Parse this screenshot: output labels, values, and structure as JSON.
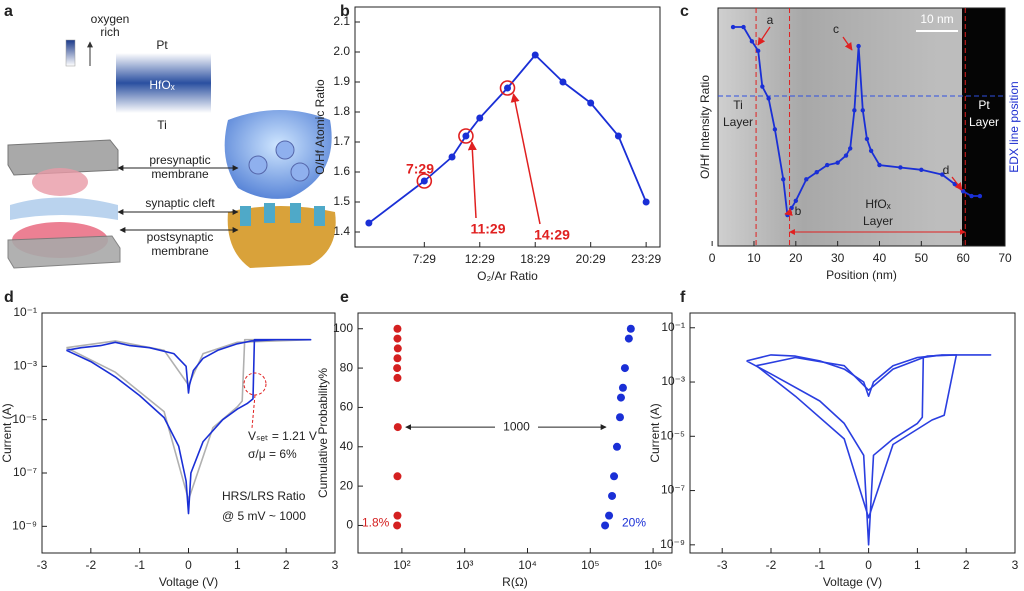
{
  "diagram": {
    "label": "a",
    "scale": [
      "oxygen",
      "rich"
    ],
    "layers": [
      "Pt",
      "HfOₓ",
      "Ti"
    ],
    "labels": [
      "presynaptic",
      "membrane",
      "synaptic cleft",
      "postsynaptic",
      "membrane"
    ]
  },
  "chart_data": [
    {
      "type": "line",
      "label": "b",
      "x": [
        0,
        1,
        1.5,
        1.75,
        2,
        2.5,
        3,
        3.5,
        4,
        4.5,
        5
      ],
      "series": [
        {
          "color": "#1a2fd6",
          "values": [
            1.43,
            1.57,
            1.65,
            1.72,
            1.78,
            1.88,
            1.99,
            1.9,
            1.83,
            1.72,
            1.5
          ]
        }
      ],
      "markers": true,
      "xlim": [
        -0.25,
        5.25
      ],
      "ylim": [
        1.35,
        2.15
      ],
      "xticks": [
        {
          "value": 1,
          "label": "7:29"
        },
        {
          "value": 2,
          "label": "12:29"
        },
        {
          "value": 3,
          "label": "18:29"
        },
        {
          "value": 4,
          "label": "20:29"
        },
        {
          "value": 5,
          "label": "23:29"
        }
      ],
      "yticks": [
        1.4,
        1.5,
        1.6,
        1.7,
        1.8,
        1.9,
        {
          "value": 2,
          "label": "2.0"
        },
        2.1
      ],
      "xlabel": "O₂/Ar Ratio",
      "ylabel": "O/Hf Atomic Ratio",
      "annotations": [
        "7:29",
        "11:29",
        "14:29"
      ]
    },
    {
      "type": "line",
      "label": "c",
      "x": [
        5,
        7.5,
        9.5,
        11,
        12,
        13.5,
        15,
        17,
        18,
        19,
        20,
        22.5,
        25,
        27.5,
        30,
        32,
        33,
        34,
        35,
        36,
        37,
        38,
        40,
        45,
        50,
        55,
        58,
        60,
        62,
        64
      ],
      "series": [
        {
          "color": "#1a2fd6",
          "values": [
            92,
            92,
            86,
            82,
            67,
            62,
            49,
            28,
            13,
            16,
            19,
            28,
            31,
            34,
            35,
            38,
            41,
            57,
            84,
            57,
            45,
            40,
            34,
            33,
            32,
            30,
            26,
            23,
            21,
            21
          ]
        }
      ],
      "markers": true,
      "xlim": [
        1.4,
        70
      ],
      "ylim": [
        0,
        100
      ],
      "xticks": [
        0,
        10,
        20,
        30,
        40,
        50,
        60,
        70
      ],
      "reference_lines": [
        10.5,
        18.5,
        60.5
      ],
      "hline": 63,
      "xlabel": "Position (nm)",
      "ylabel": "O/Hf Intensity Ratio",
      "y2label": "EDX line position",
      "annotations": [
        "10 nm",
        "a",
        "b",
        "c",
        "d",
        "Ti",
        "Layer",
        "Pt",
        "Layer",
        "HfOₓ",
        "Layer"
      ]
    },
    {
      "type": "line",
      "label": "d",
      "log": true,
      "series": [
        {
          "color": "#b0b0b0",
          "x": [
            -2.5,
            -1.5,
            -0.5,
            0,
            0.5,
            1,
            1.1,
            1.15,
            2.5,
            1,
            0.3,
            0,
            -0.5,
            -1.5,
            -2.5
          ],
          "values": [
            0.005,
            0.0006,
            2e-05,
            1e-08,
            5e-06,
            3e-05,
            5e-05,
            0.01,
            0.01,
            0.008,
            0.003,
            0.0002,
            0.004,
            0.009,
            0.005
          ]
        },
        {
          "color": "#1a2fd6",
          "x": [
            -2.5,
            -2,
            -1.5,
            -1,
            -0.5,
            -0.2,
            -0.05,
            0,
            0.05,
            0.3,
            0.7,
            1,
            1.2,
            1.32,
            1.35,
            1.6,
            2.5,
            1.8,
            1.3,
            1,
            0.6,
            0.3,
            0.1,
            0.02,
            0,
            -0.05,
            -0.3,
            -0.8,
            -1.2,
            -1.5,
            -1.8,
            -2.2,
            -2.5
          ],
          "values": [
            0.004,
            0.0015,
            0.0004,
            8e-05,
            1.2e-05,
            1e-06,
            5e-08,
            3e-09,
            1e-07,
            1.5e-06,
            1e-05,
            2.5e-05,
            4e-05,
            6e-05,
            0.01,
            0.01,
            0.01,
            0.01,
            0.009,
            0.007,
            0.004,
            0.002,
            0.0007,
            0.0002,
            0.0001,
            0.001,
            0.003,
            0.005,
            0.006,
            0.008,
            0.006,
            0.005,
            0.004
          ]
        }
      ],
      "xlim": [
        -3,
        3
      ],
      "ylim": [
        1e-10,
        0.1
      ],
      "xticks": [
        -3,
        -2,
        -1,
        0,
        1,
        2,
        3
      ],
      "yticks": [
        {
          "value": 0.1,
          "label": "10⁻¹"
        },
        {
          "value": 0.001,
          "label": "10⁻³"
        },
        {
          "value": 1e-05,
          "label": "10⁻⁵"
        },
        {
          "value": 1e-07,
          "label": "10⁻⁷"
        },
        {
          "value": 1e-09,
          "label": "10⁻⁹"
        }
      ],
      "xlabel": "Voltage (V)",
      "ylabel": "Current (A)",
      "annotations": [
        "Vₛₑₜ = 1.21 V",
        "σ/μ = 6%",
        "HRS/LRS Ratio",
        "@ 5 mV ~ 1000"
      ]
    },
    {
      "type": "scatter",
      "label": "e",
      "logx": true,
      "series": [
        {
          "color": "#d42020",
          "x": [
            84,
            85,
            85,
            86,
            85,
            84,
            85,
            86,
            85,
            85
          ],
          "values": [
            0,
            5,
            25,
            50,
            75,
            80,
            85,
            90,
            95,
            100
          ]
        },
        {
          "color": "#1a2fd6",
          "x": [
            172000,
            199000,
            222000,
            239000,
            266000,
            297000,
            308000,
            331000,
            356000,
            411000,
            442000
          ],
          "values": [
            0,
            5,
            15,
            25,
            40,
            55,
            65,
            70,
            80,
            95,
            100
          ]
        }
      ],
      "xlim": [
        20,
        2000000
      ],
      "ylim": [
        -14,
        108
      ],
      "xticks": [
        {
          "value": 100,
          "label": "10²"
        },
        {
          "value": 1000,
          "label": "10³"
        },
        {
          "value": 10000,
          "label": "10⁴"
        },
        {
          "value": 100000,
          "label": "10⁵"
        },
        {
          "value": 1000000,
          "label": "10⁶"
        }
      ],
      "yticks": [
        0,
        20,
        40,
        60,
        80,
        100
      ],
      "xlabel": "R(Ω)",
      "ylabel": "Cumulative Probability%",
      "annotations": [
        "1000",
        "1.8%",
        "20%"
      ]
    },
    {
      "type": "line",
      "label": "f",
      "log": true,
      "series": [
        {
          "color": "#2a3ee0",
          "x": [
            -2.5,
            -2,
            -1,
            -0.5,
            -0.1,
            0,
            0.1,
            0.5,
            1,
            1.1,
            1.12,
            1.5,
            2.5,
            1.5,
            1,
            0.5,
            0.1,
            0,
            -0.1,
            -0.5,
            -1,
            -1.5,
            -2,
            -2.5
          ],
          "values": [
            0.006,
            0.002,
            0.0002,
            3e-05,
            2e-06,
            1e-09,
            2e-06,
            8e-06,
            3e-05,
            5e-05,
            0.008,
            0.01,
            0.01,
            0.01,
            0.008,
            0.004,
            0.001,
            0.0003,
            0.001,
            0.003,
            0.006,
            0.009,
            0.01,
            0.006
          ]
        },
        {
          "color": "#2a3ee0",
          "x": [
            -2.3,
            -1.5,
            -0.5,
            0,
            0.5,
            1.3,
            1.55,
            1.8,
            1.2,
            0.5,
            0,
            -0.5,
            -1.5,
            -2.3
          ],
          "values": [
            0.004,
            0.0003,
            8e-06,
            1e-08,
            5e-06,
            4e-05,
            6e-05,
            0.01,
            0.009,
            0.003,
            0.0005,
            0.004,
            0.008,
            0.004
          ]
        }
      ],
      "xlim": [
        -3.66,
        3
      ],
      "ylim": [
        5e-10,
        0.35
      ],
      "xticks": [
        -3,
        -2,
        -1,
        0,
        1,
        2,
        3
      ],
      "yticks": [
        {
          "value": 0.1,
          "label": "10⁻¹"
        },
        {
          "value": 0.001,
          "label": "10⁻³"
        },
        {
          "value": 1e-05,
          "label": "10⁻⁵"
        },
        {
          "value": 1e-07,
          "label": "10⁻⁷"
        },
        {
          "value": 1e-09,
          "label": "10⁻⁹"
        }
      ],
      "xlabel": "Voltage (V)",
      "ylabel": "Current (A)"
    }
  ]
}
